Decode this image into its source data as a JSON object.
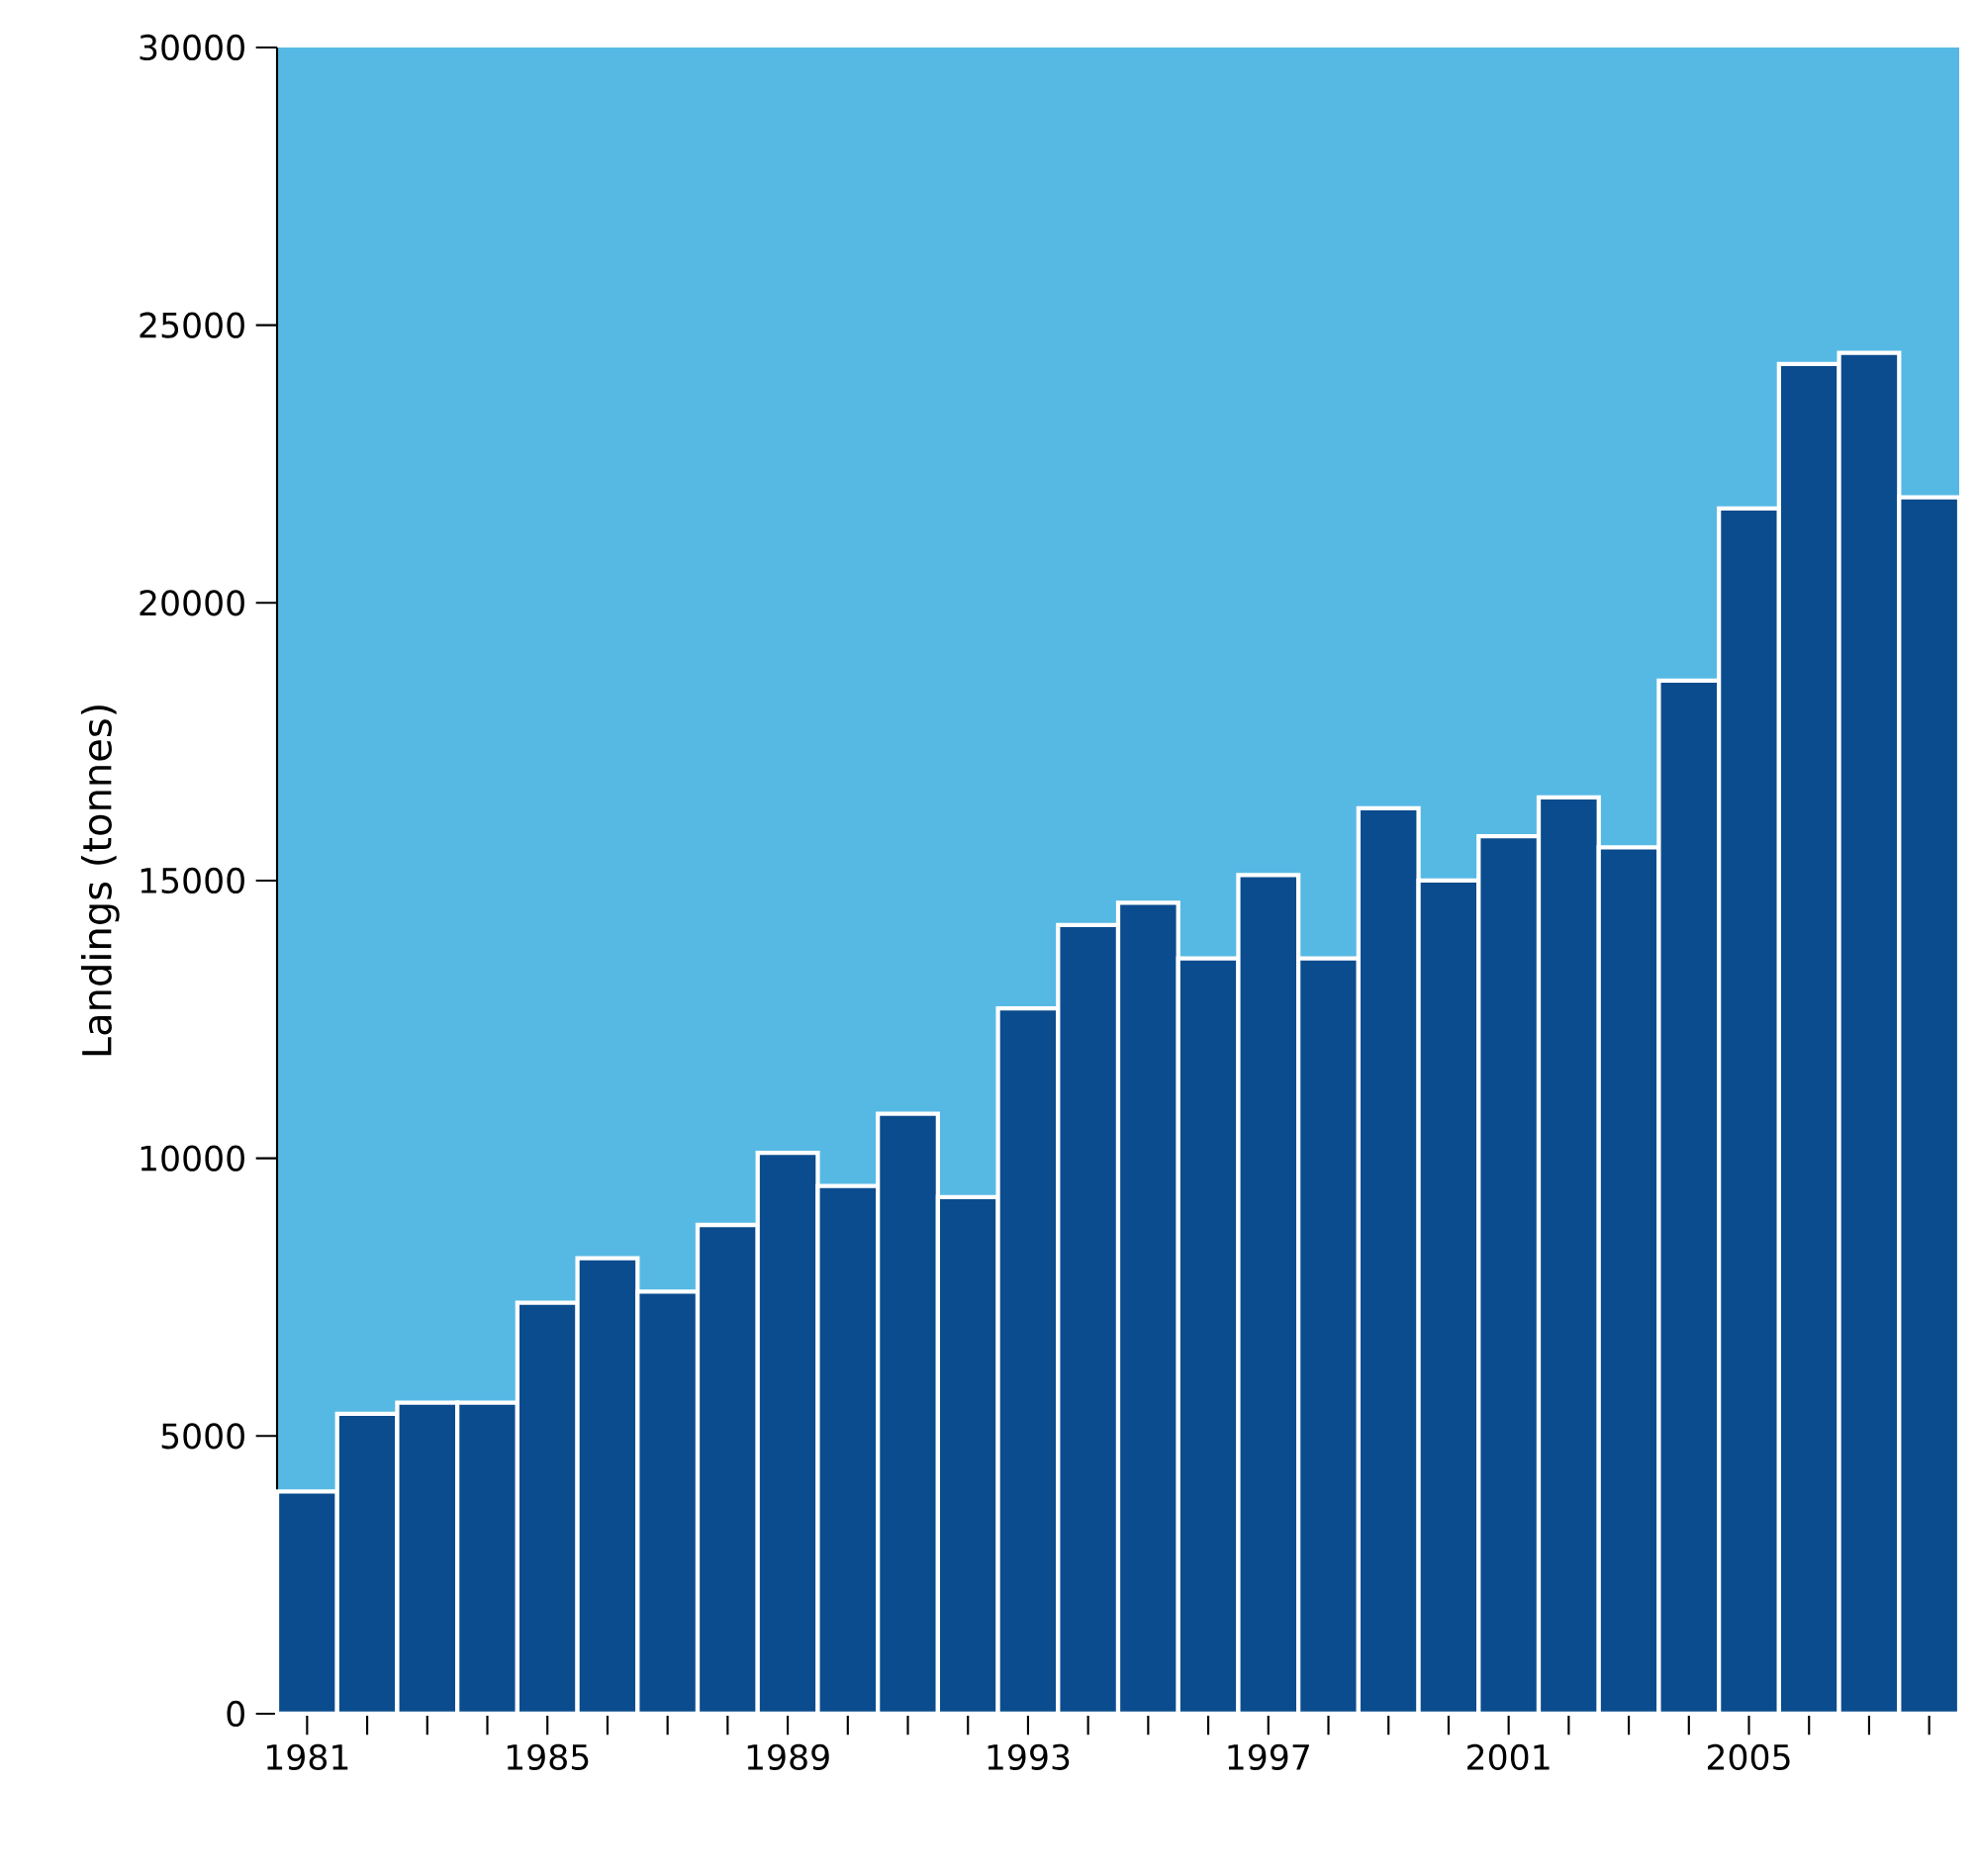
{
  "chart_data": {
    "type": "bar",
    "ylabel": "Landings (tonnes)",
    "categories": [
      "1981",
      null,
      null,
      null,
      "1985",
      null,
      null,
      null,
      "1989",
      null,
      null,
      null,
      "1993",
      null,
      null,
      null,
      "1997",
      null,
      null,
      null,
      "2001",
      null,
      null,
      null,
      "2005",
      null,
      null,
      null
    ],
    "values": [
      4000,
      5400,
      5600,
      5600,
      7400,
      8200,
      7600,
      8800,
      10100,
      9500,
      10800,
      9300,
      12700,
      14200,
      14600,
      13600,
      15100,
      13600,
      16300,
      15000,
      15800,
      16500,
      15600,
      18600,
      21700,
      24300,
      24500,
      21900
    ],
    "color": "#0b4c8e",
    "ylim": [
      0,
      30000
    ],
    "yticks": [
      0,
      5000,
      10000,
      15000,
      20000,
      25000,
      30000
    ],
    "grid": false
  }
}
